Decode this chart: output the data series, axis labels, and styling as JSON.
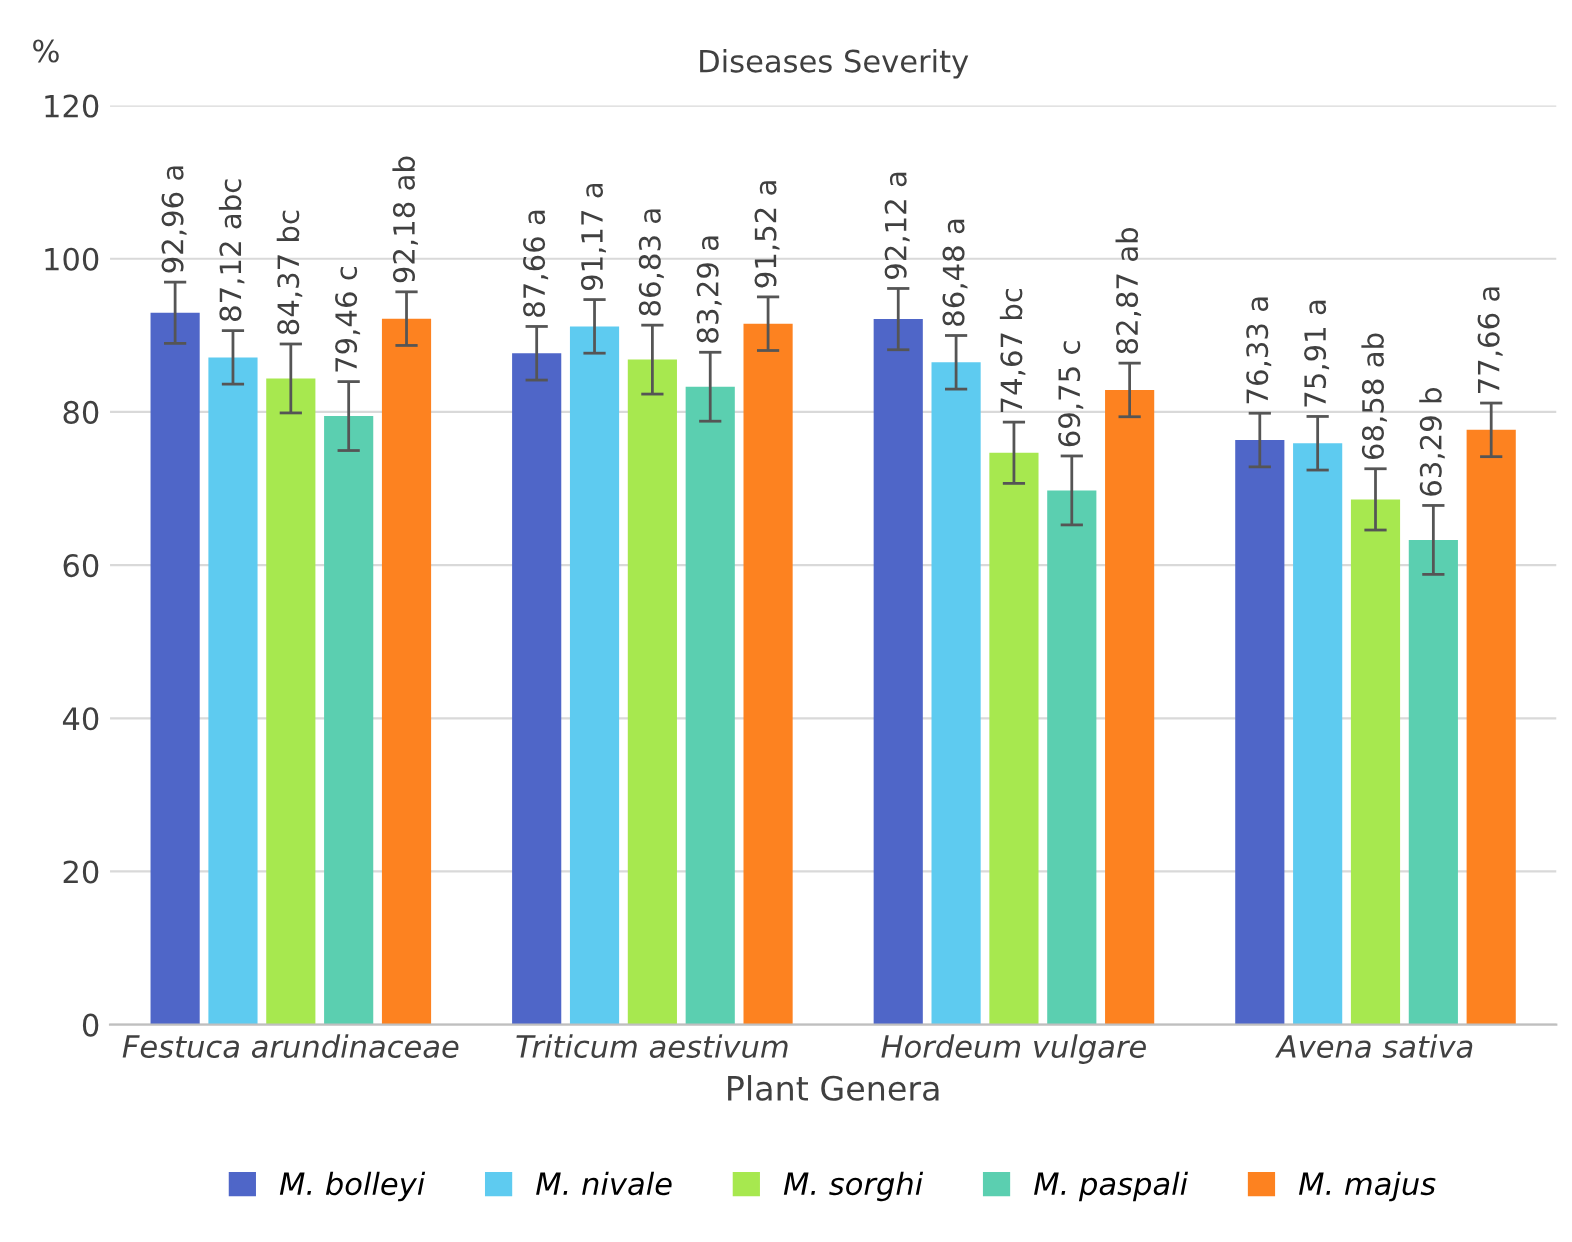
{
  "chart_data": {
    "type": "bar",
    "title": "Diseases Severity",
    "xlabel": "Plant Genera",
    "ylabel": "%",
    "categories": [
      "Festuca arundinaceae",
      "Triticum aestivum",
      "Hordeum vulgare",
      "Avena sativa"
    ],
    "ylim": [
      0,
      120
    ],
    "yticks": [
      0,
      20,
      40,
      60,
      80,
      100,
      120
    ],
    "grid": "y",
    "legend": "bottom",
    "series": [
      {
        "name": "M. bolleyi",
        "color": "#4f66c8",
        "values": [
          92.96,
          87.66,
          92.12,
          76.33
        ],
        "errors": [
          4,
          3.5,
          4,
          3.5
        ],
        "value_labels": [
          "92,96 a",
          "87,66 a",
          "92,12 a",
          "76,33 a"
        ]
      },
      {
        "name": "M. nivale",
        "color": "#5ecbf0",
        "values": [
          87.12,
          91.17,
          86.48,
          75.91
        ],
        "errors": [
          3.5,
          3.5,
          3.5,
          3.5
        ],
        "value_labels": [
          "87,12 abc",
          "91,17 a",
          "86,48 a",
          "75,91 a"
        ]
      },
      {
        "name": "M. sorghi",
        "color": "#a7e84f",
        "values": [
          84.37,
          86.83,
          74.67,
          68.58
        ],
        "errors": [
          4.5,
          4.5,
          4,
          4
        ],
        "value_labels": [
          "84,37 bc",
          "86,83 a",
          "74,67 bc",
          "68,58 ab"
        ]
      },
      {
        "name": "M. paspali",
        "color": "#5bcfb0",
        "values": [
          79.46,
          83.29,
          69.75,
          63.29
        ],
        "errors": [
          4.5,
          4.5,
          4.5,
          4.5
        ],
        "value_labels": [
          "79,46 c",
          "83,29 a",
          "69,75 c",
          "63,29 b"
        ]
      },
      {
        "name": "M. majus",
        "color": "#fd8220",
        "values": [
          92.18,
          91.52,
          82.87,
          77.66
        ],
        "errors": [
          3.5,
          3.5,
          3.5,
          3.5
        ],
        "value_labels": [
          "92,18 ab",
          "91,52 a",
          "82,87 ab",
          "77,66 a"
        ]
      }
    ]
  }
}
